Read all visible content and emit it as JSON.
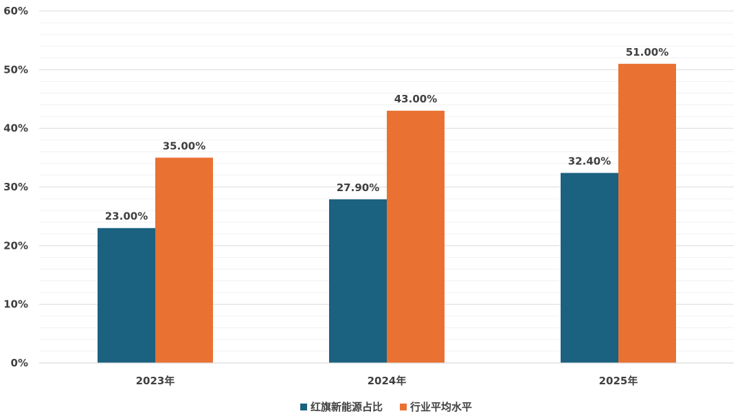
{
  "chart_data": {
    "type": "bar",
    "categories": [
      "2023年",
      "2024年",
      "2025年"
    ],
    "series": [
      {
        "name": "红旗新能源占比",
        "values": [
          23.0,
          27.9,
          32.4
        ],
        "labels": [
          "23.00%",
          "27.90%",
          "32.40%"
        ],
        "color": "#1b6180"
      },
      {
        "name": "行业平均水平",
        "values": [
          35.0,
          43.0,
          51.0
        ],
        "labels": [
          "35.00%",
          "43.00%",
          "51.00%"
        ],
        "color": "#e97132"
      }
    ],
    "yticks": [
      0,
      10,
      20,
      30,
      40,
      50,
      60
    ],
    "ytick_labels": [
      "0%",
      "10%",
      "20%",
      "30%",
      "40%",
      "50%",
      "60%"
    ],
    "ylim": [
      0,
      60
    ],
    "grid": true,
    "minor_grid_step": 2,
    "legend_position": "bottom-center",
    "title": "",
    "xlabel": "",
    "ylabel": ""
  }
}
